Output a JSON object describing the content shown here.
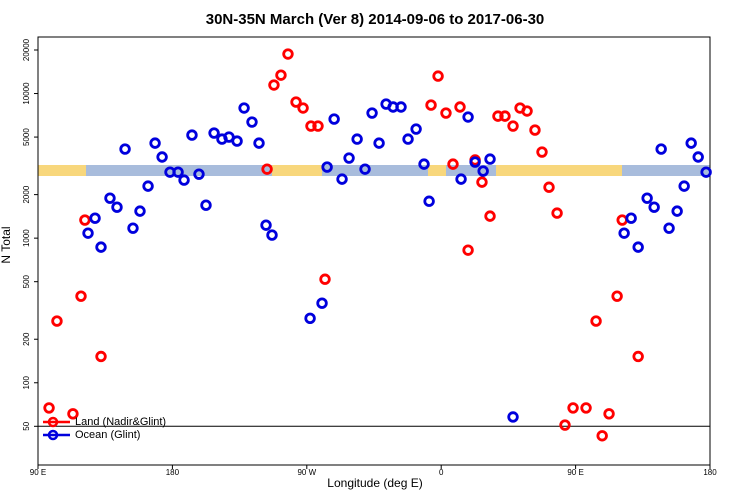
{
  "chart_data": {
    "type": "scatter",
    "title": "30N-35N March (Ver 8)   2014-09-06 to 2017-06-30",
    "xlabel": "Longitude (deg E)",
    "ylabel": "N Total",
    "log_y": true,
    "legend": "lower left",
    "hline": 50,
    "xlim": [
      90,
      540
    ],
    "ylim": [
      27,
      24600
    ],
    "xticks": [
      {
        "value": 90,
        "label": "90 E"
      },
      {
        "value": 180,
        "label": "180"
      },
      {
        "value": 270,
        "label": "90 W"
      },
      {
        "value": 360,
        "label": "0"
      },
      {
        "value": 450,
        "label": "90 E"
      },
      {
        "value": 540,
        "label": "180"
      }
    ],
    "yticks": [
      50,
      100,
      200,
      500,
      1000,
      2000,
      5000,
      10000,
      20000
    ],
    "series": [
      {
        "name": "Land (Nadir&Glint)",
        "color": "#ff0000",
        "x": [
          97.4,
          102.7,
          113.4,
          118.8,
          121.4,
          132.2,
          243.4,
          248,
          252.7,
          257.4,
          262.8,
          267.5,
          272.8,
          277.5,
          282.2,
          353.2,
          357.9,
          363.2,
          367.9,
          372.6,
          378,
          382.7,
          387.3,
          392.7,
          398,
          402.7,
          408.1,
          412.8,
          417.5,
          422.8,
          427.5,
          432.2,
          437.6,
          442.9,
          448.3,
          457,
          463.7,
          467.8,
          472.4,
          477.8,
          481.2,
          491.9
        ],
        "values": [
          67,
          267,
          61,
          397,
          1334,
          152,
          3000,
          11450,
          13400,
          18760,
          8730,
          7940,
          5960,
          5960,
          520,
          8320,
          13200,
          7330,
          3250,
          8070,
          826,
          3470,
          2440,
          1420,
          6980,
          6980,
          5960,
          7940,
          7570,
          5590,
          3940,
          2250,
          1490,
          51,
          67,
          67,
          267,
          43,
          61,
          397,
          1334,
          152
        ]
      },
      {
        "name": "Ocean (Glint)",
        "color": "#0000dd",
        "x": [
          123.5,
          128.2,
          132.2,
          138.2,
          142.9,
          148.3,
          153.6,
          158.3,
          163.7,
          168.4,
          173.1,
          178.4,
          183.8,
          187.8,
          193.1,
          197.8,
          202.5,
          207.9,
          213.2,
          217.9,
          223.3,
          228,
          233.3,
          238,
          242.7,
          246.7,
          272.2,
          280.2,
          283.6,
          288.3,
          293.6,
          298.3,
          303.7,
          309,
          313.7,
          318.4,
          323.1,
          327.8,
          333.1,
          337.8,
          343.2,
          348.5,
          351.9,
          373.3,
          378,
          382.7,
          388.1,
          392.7,
          408.1,
          482.5,
          487.2,
          491.9,
          497.9,
          502.6,
          507.3,
          512.6,
          518,
          522.7,
          527.4,
          532.1,
          537.4
        ],
        "values": [
          1083,
          1374,
          867,
          1890,
          1637,
          4130,
          1172,
          1538,
          2290,
          4540,
          3640,
          2860,
          2860,
          2520,
          5160,
          2770,
          1690,
          5330,
          4840,
          5000,
          4690,
          7940,
          6350,
          4540,
          1230,
          1050,
          279,
          355,
          3100,
          6660,
          2560,
          3580,
          4840,
          3000,
          7330,
          4540,
          8460,
          8070,
          8070,
          4840,
          5680,
          3250,
          1800,
          2560,
          6880,
          3360,
          2910,
          3520,
          58,
          1083,
          1374,
          867,
          1890,
          1637,
          4130,
          1172,
          1538,
          2290,
          4540,
          3640,
          2860
        ]
      }
    ]
  }
}
